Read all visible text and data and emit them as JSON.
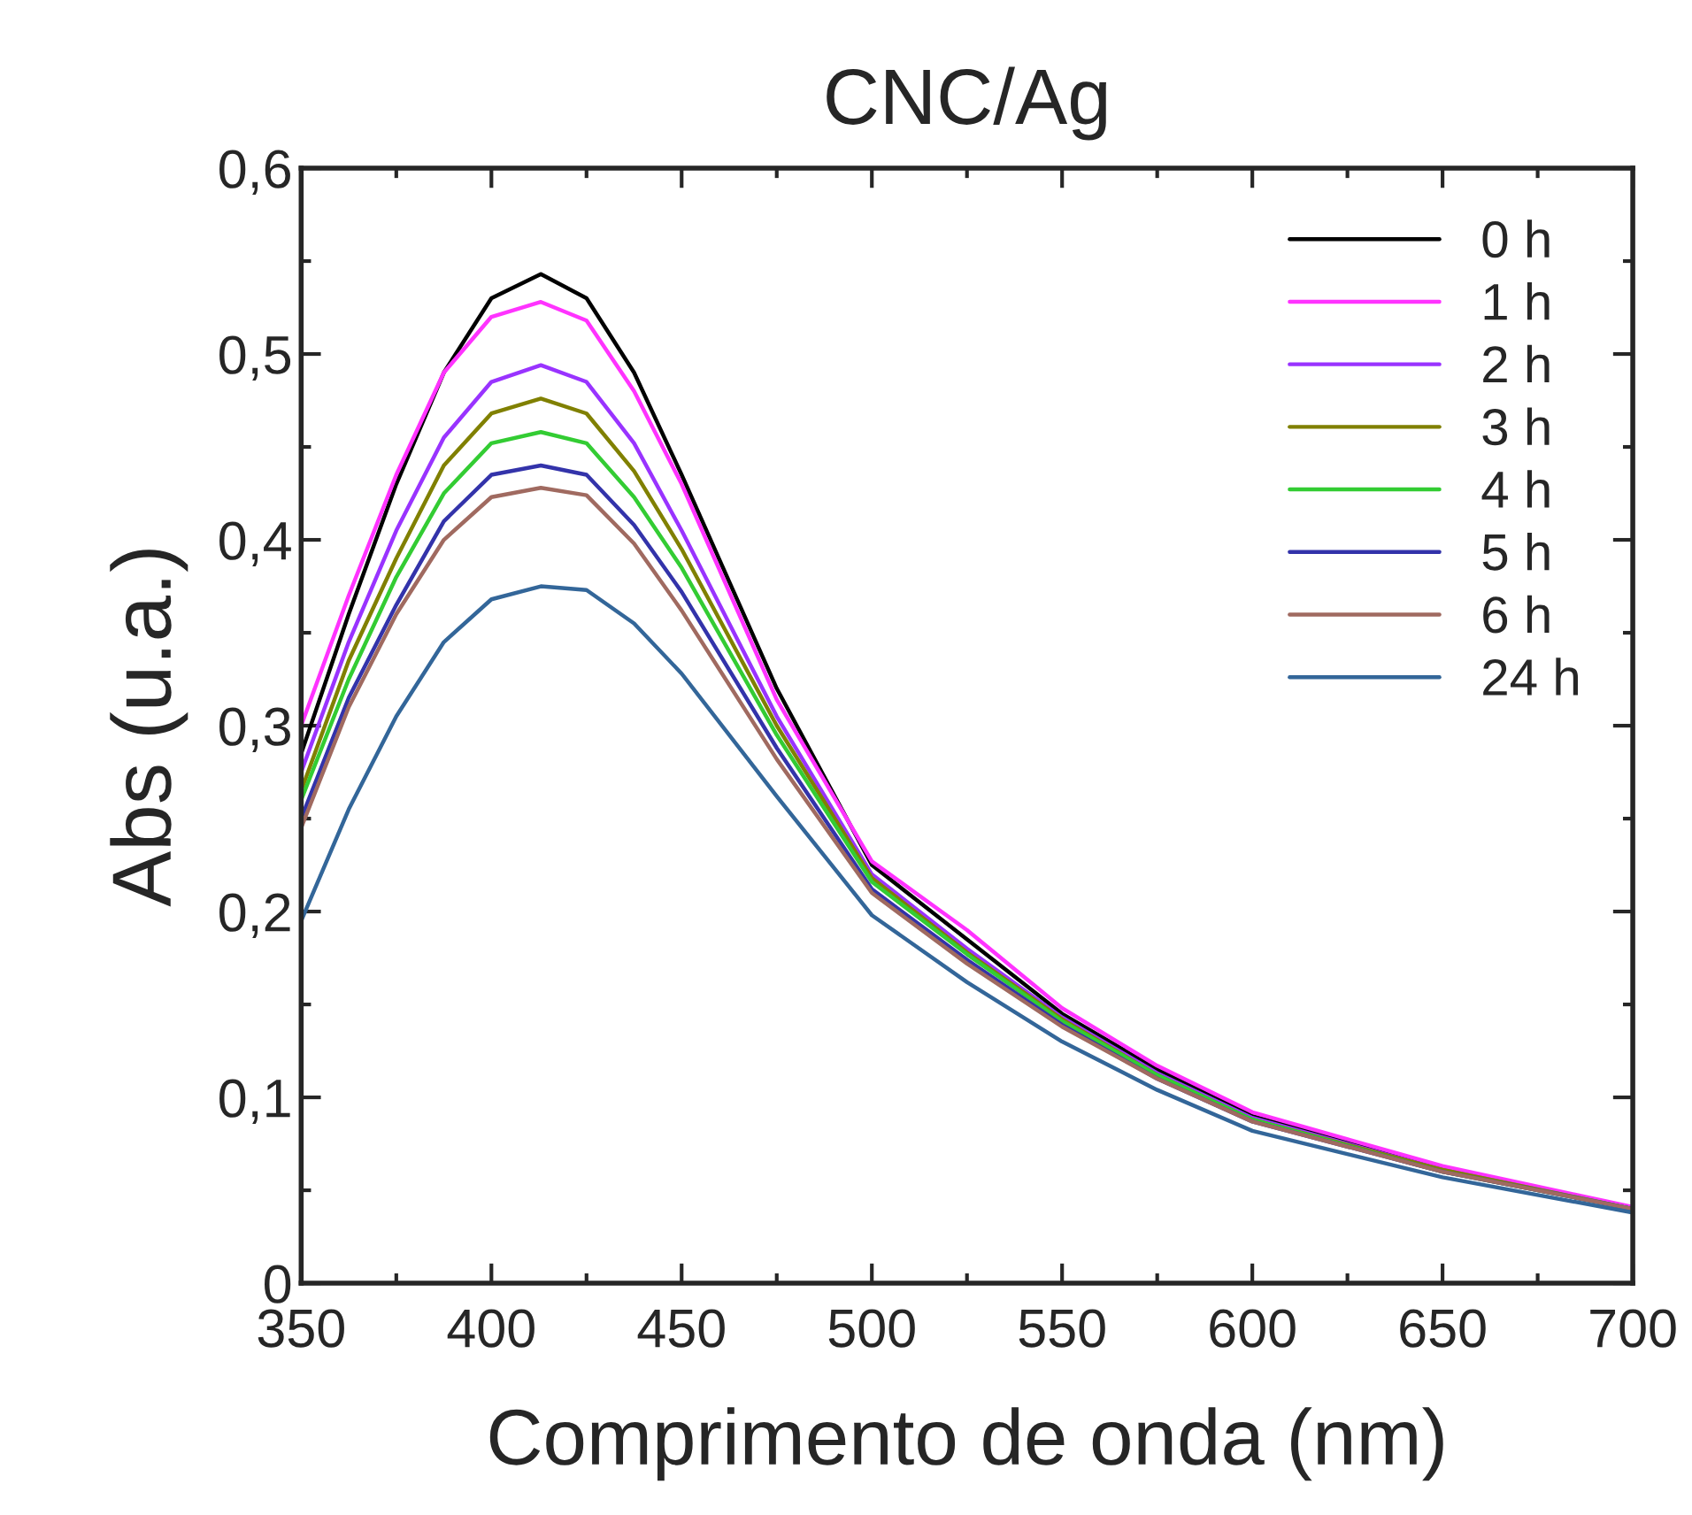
{
  "chart_data": {
    "type": "line",
    "title": "CNC/Ag",
    "xlabel": "Comprimento de onda (nm)",
    "ylabel": "Abs (u.a.)",
    "x": [
      350,
      362.5,
      375,
      387.5,
      400,
      413,
      425,
      437.5,
      450,
      475,
      500,
      525,
      550,
      575,
      600,
      650,
      700
    ],
    "series": [
      {
        "name": "0 h",
        "color": "#000000",
        "values": [
          0.285,
          0.36,
          0.43,
          0.49,
          0.53,
          0.543,
          0.53,
          0.49,
          0.435,
          0.32,
          0.225,
          0.185,
          0.145,
          0.115,
          0.09,
          0.062,
          0.04
        ]
      },
      {
        "name": "1 h",
        "color": "#ff33ff",
        "values": [
          0.3,
          0.37,
          0.435,
          0.49,
          0.52,
          0.528,
          0.518,
          0.48,
          0.43,
          0.314,
          0.227,
          0.19,
          0.148,
          0.117,
          0.092,
          0.063,
          0.041
        ]
      },
      {
        "name": "2 h",
        "color": "#9933ff",
        "values": [
          0.275,
          0.345,
          0.405,
          0.455,
          0.485,
          0.494,
          0.485,
          0.452,
          0.405,
          0.305,
          0.22,
          0.18,
          0.143,
          0.113,
          0.089,
          0.061,
          0.04
        ]
      },
      {
        "name": "3 h",
        "color": "#808000",
        "values": [
          0.265,
          0.335,
          0.39,
          0.44,
          0.468,
          0.476,
          0.468,
          0.437,
          0.395,
          0.3,
          0.218,
          0.178,
          0.142,
          0.112,
          0.088,
          0.061,
          0.04
        ]
      },
      {
        "name": "4 h",
        "color": "#33cc33",
        "values": [
          0.26,
          0.325,
          0.38,
          0.425,
          0.452,
          0.458,
          0.452,
          0.423,
          0.385,
          0.295,
          0.216,
          0.177,
          0.141,
          0.112,
          0.088,
          0.06,
          0.04
        ]
      },
      {
        "name": "5 h",
        "color": "#3333aa",
        "values": [
          0.25,
          0.315,
          0.365,
          0.41,
          0.435,
          0.44,
          0.435,
          0.408,
          0.372,
          0.288,
          0.212,
          0.174,
          0.139,
          0.11,
          0.087,
          0.06,
          0.04
        ]
      },
      {
        "name": "6 h",
        "color": "#a06a60",
        "values": [
          0.245,
          0.31,
          0.36,
          0.4,
          0.423,
          0.428,
          0.424,
          0.398,
          0.362,
          0.282,
          0.21,
          0.172,
          0.138,
          0.11,
          0.087,
          0.06,
          0.04
        ]
      },
      {
        "name": "24 h",
        "color": "#336699",
        "values": [
          0.195,
          0.255,
          0.305,
          0.345,
          0.368,
          0.375,
          0.373,
          0.355,
          0.328,
          0.262,
          0.198,
          0.162,
          0.13,
          0.104,
          0.082,
          0.057,
          0.038
        ]
      }
    ],
    "xlim": [
      350,
      700
    ],
    "xticks": [
      350,
      400,
      450,
      500,
      550,
      600,
      650,
      700
    ],
    "ylim": [
      0,
      0.6
    ],
    "yticks": [
      {
        "value": 0,
        "label": "0"
      },
      {
        "value": 0.1,
        "label": "0,1"
      },
      {
        "value": 0.2,
        "label": "0,2"
      },
      {
        "value": 0.3,
        "label": "0,3"
      },
      {
        "value": 0.4,
        "label": "0,4"
      },
      {
        "value": 0.5,
        "label": "0,5"
      },
      {
        "value": 0.6,
        "label": "0,6"
      }
    ],
    "legend": "top right",
    "grid": false,
    "marker": "none",
    "line_style": "solid"
  }
}
